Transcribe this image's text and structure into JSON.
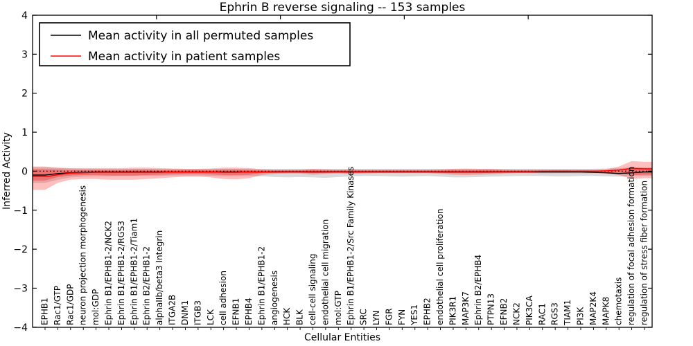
{
  "chart_data": {
    "type": "line",
    "title": "Ephrin B reverse signaling -- 153 samples",
    "xlabel": "Cellular Entities",
    "ylabel": "Inferred Activity",
    "ylim": [
      -4,
      4
    ],
    "grid": false,
    "legend_position": "upper left",
    "ytick_values": [
      4,
      3,
      2,
      1,
      0,
      -1,
      -2,
      -3,
      -4
    ],
    "ytick_labels": [
      "4",
      "3",
      "2",
      "1",
      "0",
      "−1",
      "−2",
      "−3",
      "−4"
    ],
    "legend": [
      {
        "label": "Mean activity in all permuted samples",
        "color": "#000000"
      },
      {
        "label": "Mean activity in patient samples",
        "color": "#ff0000"
      }
    ],
    "zero_line": {
      "style": "dotted",
      "color": "#000000",
      "y": 0
    },
    "categories": [
      "EPHB1",
      "Rac1/GTP",
      "Rac1/GDP",
      "neuron projection morphogenesis",
      "mol:GDP",
      "Ephrin B1/EPHB1-2/NCK2",
      "Ephrin B1/EPHB1-2/RGS3",
      "Ephrin B1/EPHB1-2/Tiam1",
      "Ephrin B2/EPHB1-2",
      "alphaIIb/beta3 Integrin",
      "ITGA2B",
      "DNM1",
      "ITGB3",
      "LCK",
      "cell adhesion",
      "EFNB1",
      "EPHB4",
      "Ephrin B1/EPHB1-2",
      "angiogenesis",
      "HCK",
      "BLK",
      "cell-cell signaling",
      "endothelial cell migration",
      "mol:GTP",
      "Ephrin B1/EPHB1-2/Src Family Kinases",
      "SRC",
      "LYN",
      "FGR",
      "FYN",
      "YES1",
      "EPHB2",
      "endothelial cell proliferation",
      "PIK3R1",
      "MAP3K7",
      "Ephrin B2/EPHB4",
      "PTPN13",
      "EFNB2",
      "NCK2",
      "PIK3CA",
      "RAC1",
      "RGS3",
      "TIAM1",
      "PI3K",
      "MAP2K4",
      "MAPK8",
      "chemotaxis",
      "regulation of focal adhesion formation",
      "regulation of stress fiber formation"
    ],
    "series": [
      {
        "name": "Mean activity in all permuted samples",
        "color": "#000000",
        "style": "solid",
        "values": [
          -0.1,
          -0.06,
          -0.04,
          -0.03,
          -0.02,
          -0.02,
          -0.02,
          -0.02,
          -0.02,
          -0.02,
          -0.02,
          -0.02,
          -0.02,
          -0.02,
          -0.02,
          -0.02,
          -0.02,
          -0.02,
          -0.02,
          -0.02,
          -0.02,
          -0.02,
          -0.02,
          -0.02,
          -0.02,
          -0.02,
          -0.02,
          -0.02,
          -0.02,
          -0.02,
          -0.02,
          -0.02,
          -0.02,
          -0.02,
          -0.02,
          -0.02,
          -0.02,
          -0.02,
          -0.02,
          -0.02,
          -0.02,
          -0.02,
          -0.02,
          -0.03,
          -0.04,
          -0.06,
          -0.04,
          -0.02
        ]
      },
      {
        "name": "Mean activity in patient samples",
        "color": "#ff0000",
        "style": "solid",
        "values": [
          -0.14,
          -0.09,
          -0.05,
          -0.04,
          -0.03,
          -0.03,
          -0.03,
          -0.03,
          -0.03,
          -0.03,
          -0.02,
          -0.02,
          -0.02,
          -0.02,
          -0.03,
          -0.03,
          -0.02,
          -0.02,
          -0.01,
          -0.01,
          -0.01,
          -0.01,
          -0.01,
          -0.01,
          -0.01,
          -0.01,
          -0.01,
          -0.01,
          -0.01,
          -0.01,
          -0.01,
          -0.01,
          -0.01,
          -0.01,
          -0.01,
          -0.01,
          -0.01,
          -0.01,
          -0.01,
          0.0,
          0.0,
          0.0,
          0.0,
          0.0,
          0.01,
          0.03,
          0.07,
          0.06
        ]
      }
    ],
    "bands": [
      {
        "name": "permuted-range",
        "color": "#999999",
        "opacity": 0.35,
        "upper": [
          0.1,
          0.08,
          0.07,
          0.06,
          0.06,
          0.06,
          0.06,
          0.06,
          0.06,
          0.06,
          0.06,
          0.06,
          0.06,
          0.06,
          0.06,
          0.06,
          0.06,
          0.06,
          0.06,
          0.06,
          0.06,
          0.06,
          0.06,
          0.06,
          0.06,
          0.06,
          0.06,
          0.06,
          0.06,
          0.06,
          0.06,
          0.06,
          0.06,
          0.06,
          0.06,
          0.06,
          0.06,
          0.06,
          0.06,
          0.06,
          0.06,
          0.06,
          0.06,
          0.06,
          0.07,
          0.08,
          0.09,
          0.08
        ],
        "lower": [
          -0.3,
          -0.22,
          -0.16,
          -0.14,
          -0.13,
          -0.13,
          -0.12,
          -0.12,
          -0.12,
          -0.12,
          -0.11,
          -0.11,
          -0.11,
          -0.12,
          -0.13,
          -0.13,
          -0.12,
          -0.13,
          -0.15,
          -0.16,
          -0.15,
          -0.16,
          -0.17,
          -0.15,
          -0.13,
          -0.12,
          -0.12,
          -0.13,
          -0.14,
          -0.13,
          -0.12,
          -0.14,
          -0.16,
          -0.16,
          -0.15,
          -0.14,
          -0.13,
          -0.12,
          -0.12,
          -0.12,
          -0.13,
          -0.13,
          -0.12,
          -0.12,
          -0.13,
          -0.14,
          -0.13,
          -0.12
        ]
      },
      {
        "name": "patient-range-outer",
        "color": "#ff0000",
        "opacity": 0.25,
        "upper": [
          0.12,
          0.09,
          0.08,
          0.08,
          0.08,
          0.08,
          0.08,
          0.09,
          0.09,
          0.08,
          0.07,
          0.06,
          0.06,
          0.07,
          0.09,
          0.09,
          0.08,
          0.05,
          0.04,
          0.04,
          0.04,
          0.06,
          0.05,
          0.04,
          0.05,
          0.04,
          0.04,
          0.04,
          0.04,
          0.04,
          0.04,
          0.05,
          0.06,
          0.07,
          0.06,
          0.06,
          0.05,
          0.04,
          0.04,
          0.04,
          0.04,
          0.04,
          0.04,
          0.04,
          0.05,
          0.12,
          0.26,
          0.24
        ],
        "lower": [
          -0.48,
          -0.3,
          -0.22,
          -0.2,
          -0.2,
          -0.22,
          -0.22,
          -0.22,
          -0.2,
          -0.18,
          -0.16,
          -0.14,
          -0.14,
          -0.16,
          -0.2,
          -0.21,
          -0.18,
          -0.1,
          -0.07,
          -0.06,
          -0.06,
          -0.09,
          -0.07,
          -0.06,
          -0.07,
          -0.06,
          -0.05,
          -0.05,
          -0.05,
          -0.05,
          -0.05,
          -0.07,
          -0.09,
          -0.1,
          -0.09,
          -0.08,
          -0.06,
          -0.05,
          -0.05,
          -0.05,
          -0.05,
          -0.05,
          -0.05,
          -0.05,
          -0.06,
          -0.1,
          -0.2,
          -0.18
        ]
      },
      {
        "name": "patient-range-inner",
        "color": "#ff0000",
        "opacity": 0.3,
        "upper": [
          0.05,
          0.04,
          0.03,
          0.03,
          0.03,
          0.03,
          0.03,
          0.04,
          0.04,
          0.03,
          0.03,
          0.03,
          0.03,
          0.03,
          0.04,
          0.04,
          0.03,
          0.02,
          0.02,
          0.02,
          0.02,
          0.03,
          0.02,
          0.02,
          0.02,
          0.02,
          0.02,
          0.02,
          0.02,
          0.02,
          0.02,
          0.02,
          0.03,
          0.03,
          0.03,
          0.03,
          0.02,
          0.02,
          0.02,
          0.02,
          0.02,
          0.02,
          0.02,
          0.02,
          0.02,
          0.05,
          0.1,
          0.09
        ],
        "lower": [
          -0.24,
          -0.15,
          -0.11,
          -0.1,
          -0.1,
          -0.11,
          -0.11,
          -0.11,
          -0.1,
          -0.09,
          -0.08,
          -0.07,
          -0.07,
          -0.08,
          -0.1,
          -0.1,
          -0.09,
          -0.05,
          -0.04,
          -0.03,
          -0.03,
          -0.05,
          -0.04,
          -0.03,
          -0.04,
          -0.03,
          -0.03,
          -0.03,
          -0.03,
          -0.03,
          -0.03,
          -0.04,
          -0.05,
          -0.05,
          -0.05,
          -0.04,
          -0.03,
          -0.03,
          -0.03,
          -0.03,
          -0.03,
          -0.03,
          -0.03,
          -0.03,
          -0.03,
          -0.05,
          -0.1,
          -0.09
        ]
      }
    ]
  }
}
